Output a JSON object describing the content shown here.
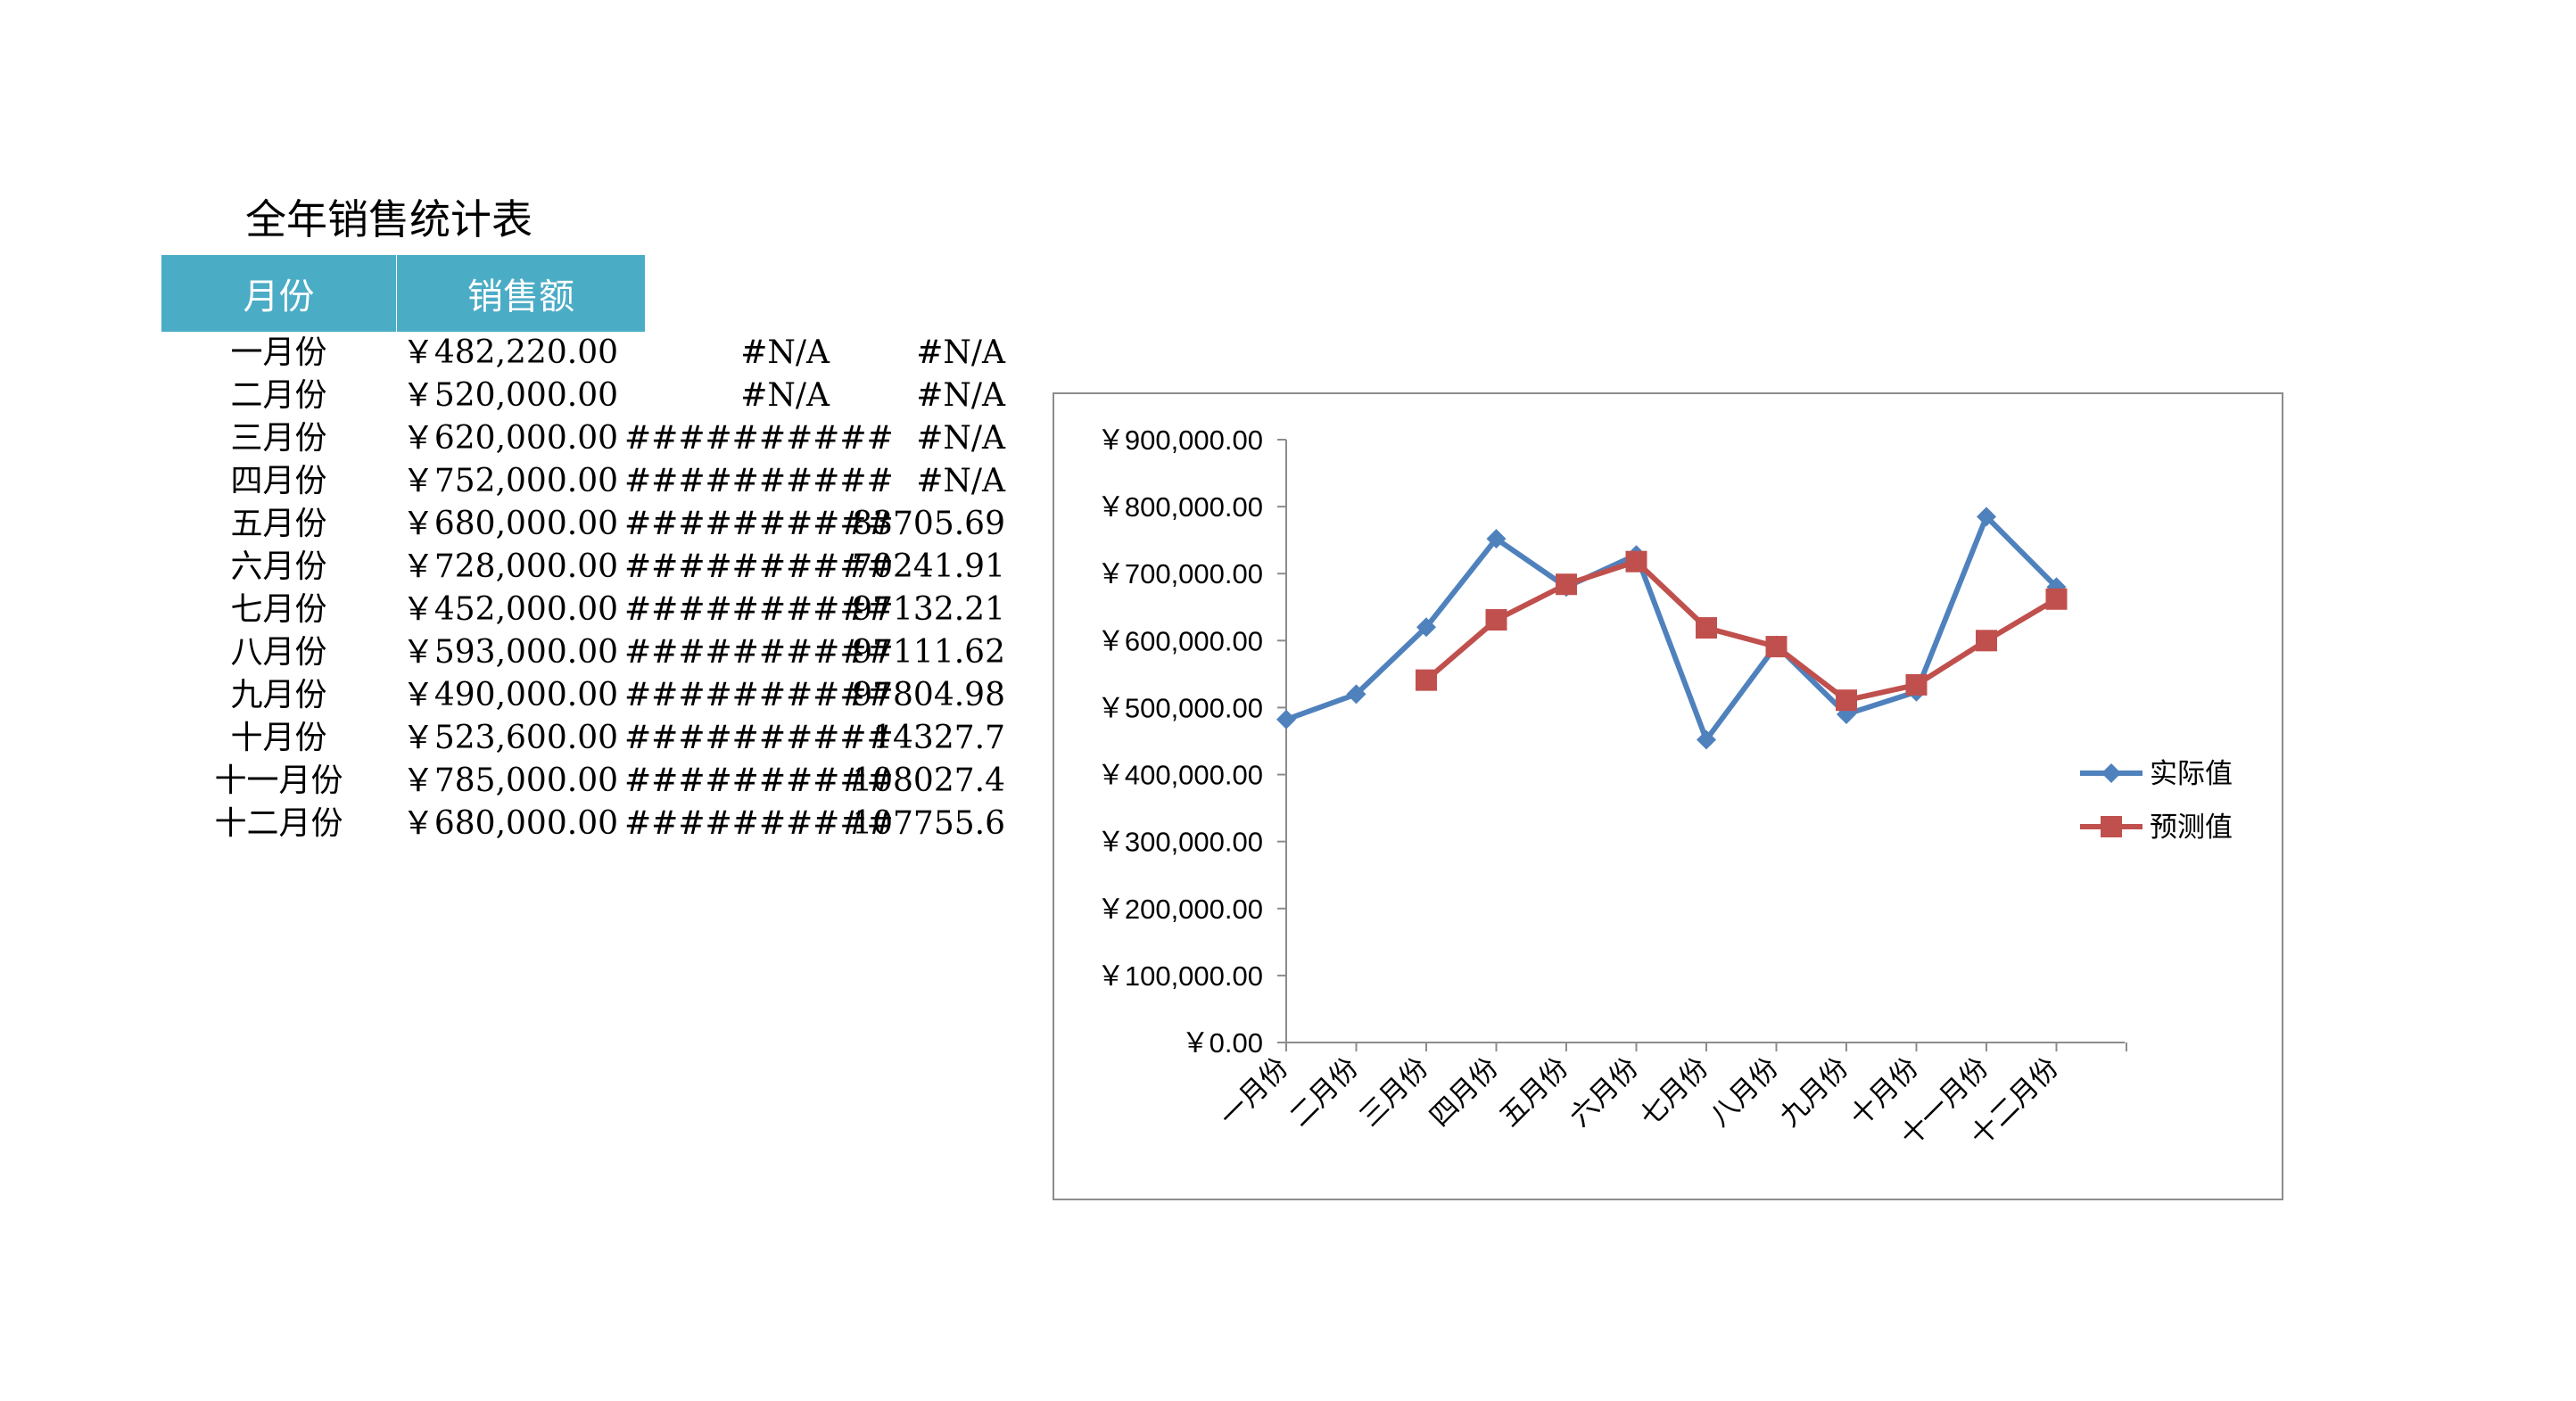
{
  "table": {
    "title": "全年销售统计表",
    "headers": {
      "month": "月份",
      "sales": "销售额"
    },
    "rows": [
      {
        "month": "一月份",
        "sales": "￥482,220.00",
        "c3": "#N/A",
        "c4": "#N/A"
      },
      {
        "month": "二月份",
        "sales": "￥520,000.00",
        "c3": "#N/A",
        "c4": "#N/A"
      },
      {
        "month": "三月份",
        "sales": "￥620,000.00",
        "c3": "##########",
        "c4": "#N/A"
      },
      {
        "month": "四月份",
        "sales": "￥752,000.00",
        "c3": "##########",
        "c4": "#N/A"
      },
      {
        "month": "五月份",
        "sales": "￥680,000.00",
        "c3": "##########",
        "c4": "83705.69"
      },
      {
        "month": "六月份",
        "sales": "￥728,000.00",
        "c3": "##########",
        "c4": "70241.91"
      },
      {
        "month": "七月份",
        "sales": "￥452,000.00",
        "c3": "##########",
        "c4": "97132.21"
      },
      {
        "month": "八月份",
        "sales": "￥593,000.00",
        "c3": "##########",
        "c4": "97111.62"
      },
      {
        "month": "九月份",
        "sales": "￥490,000.00",
        "c3": "##########",
        "c4": "97804.98"
      },
      {
        "month": "十月份",
        "sales": "￥523,600.00",
        "c3": "##########",
        "c4": "14327.7"
      },
      {
        "month": "十一月份",
        "sales": "￥785,000.00",
        "c3": "##########",
        "c4": "108027.4"
      },
      {
        "month": "十二月份",
        "sales": "￥680,000.00",
        "c3": "##########",
        "c4": "107755.6"
      }
    ]
  },
  "chart_data": {
    "type": "line",
    "categories": [
      "一月份",
      "二月份",
      "三月份",
      "四月份",
      "五月份",
      "六月份",
      "七月份",
      "八月份",
      "九月份",
      "十月份",
      "十一月份",
      "十二月份"
    ],
    "series": [
      {
        "name": "实际值",
        "color": "#4f81bd",
        "marker": "diamond",
        "values": [
          482220,
          520000,
          620000,
          752000,
          680000,
          728000,
          452000,
          593000,
          490000,
          523600,
          785000,
          680000
        ]
      },
      {
        "name": "预测值",
        "color": "#c0504d",
        "marker": "square",
        "values": [
          null,
          null,
          541000,
          631000,
          684000,
          718000,
          619000,
          591000,
          511000,
          534000,
          600000,
          662000
        ]
      }
    ],
    "ylim": [
      0,
      900000
    ],
    "yticks": [
      0,
      100000,
      200000,
      300000,
      400000,
      500000,
      600000,
      700000,
      800000,
      900000
    ],
    "ytick_labels": [
      "￥0.00",
      "￥100,000.00",
      "￥200,000.00",
      "￥300,000.00",
      "￥400,000.00",
      "￥500,000.00",
      "￥600,000.00",
      "￥700,000.00",
      "￥800,000.00",
      "￥900,000.00"
    ],
    "legend_position": "right",
    "grid": false
  }
}
